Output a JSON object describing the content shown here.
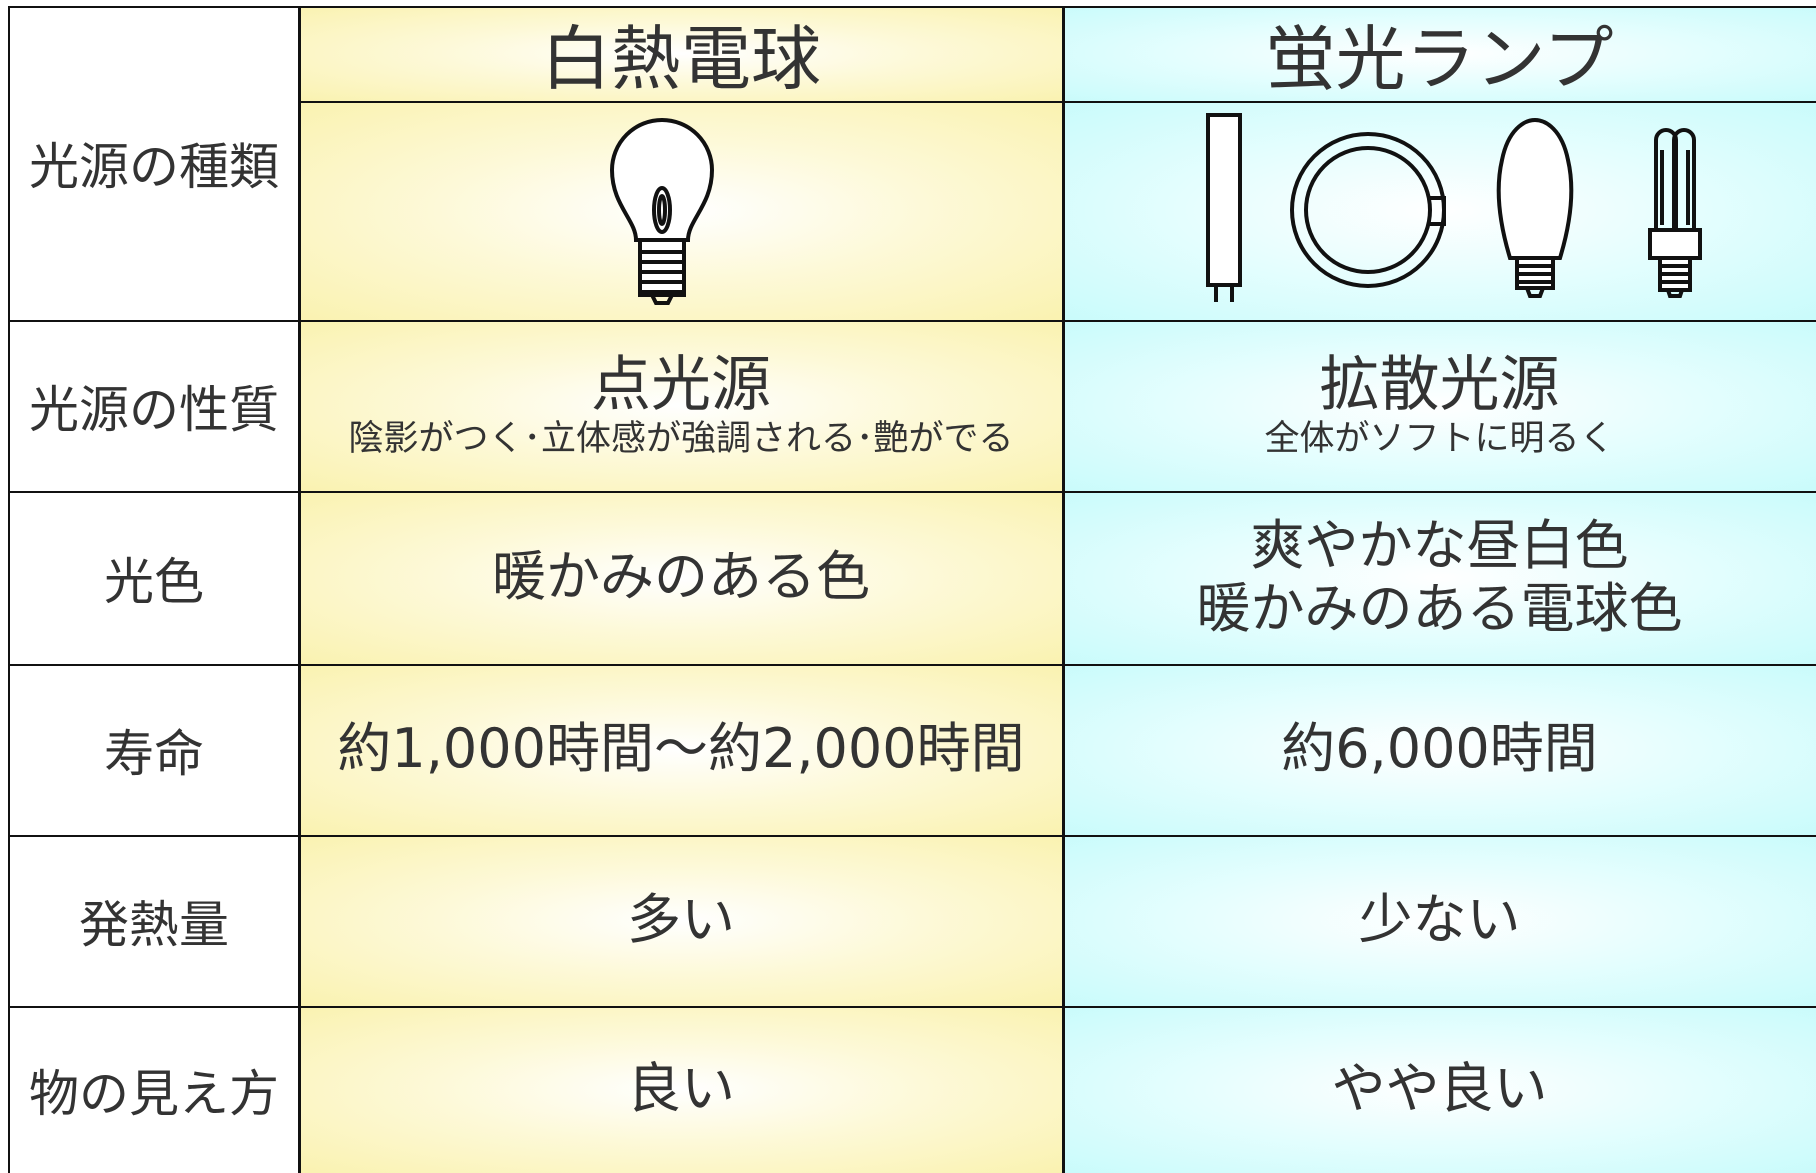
{
  "table": {
    "columns": [
      "白熱電球",
      "蛍光ランプ"
    ],
    "rows": [
      {
        "label": "光源の種類"
      },
      {
        "label": "光源の性質",
        "cells": [
          {
            "main": "点光源",
            "sub": "陰影がつく･立体感が強調される･艶がでる"
          },
          {
            "main": "拡散光源",
            "sub": "全体がソフトに明るく"
          }
        ]
      },
      {
        "label": "光色",
        "cells": [
          [
            "暖かみのある色"
          ],
          [
            "爽やかな昼白色",
            "暖かみのある電球色"
          ]
        ]
      },
      {
        "label": "寿命",
        "cells": [
          [
            "約1,000時間～約2,000時間"
          ],
          [
            "約6,000時間"
          ]
        ]
      },
      {
        "label": "発熱量",
        "cells": [
          [
            "多い"
          ],
          [
            "少ない"
          ]
        ]
      },
      {
        "label": "物の見え方",
        "cells": [
          [
            "良い"
          ],
          [
            "やや良い"
          ]
        ]
      }
    ]
  }
}
